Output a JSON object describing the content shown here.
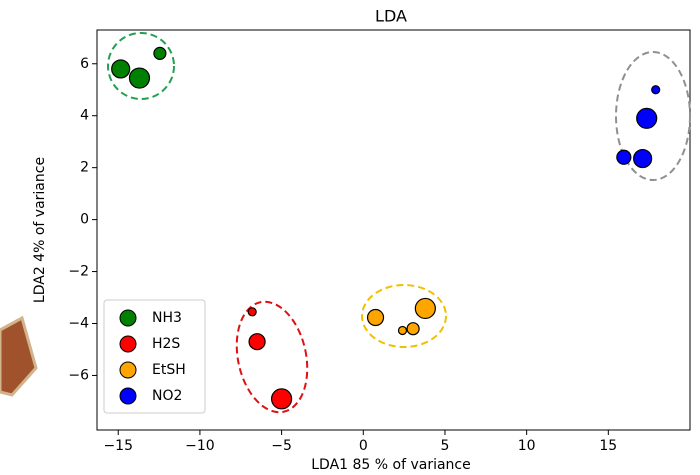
{
  "chart_data": {
    "type": "scatter",
    "title": "LDA",
    "x_label": "LDA1 85 % of variance",
    "y_label": "LDA2 4% of variance",
    "xlim": [
      -16.3,
      20
    ],
    "ylim": [
      -8.1,
      7.3
    ],
    "xticks": [
      {
        "value": -15,
        "label": "−15"
      },
      {
        "value": -10,
        "label": "−10"
      },
      {
        "value": -5,
        "label": "−5"
      },
      0,
      5,
      10,
      15
    ],
    "yticks": [
      {
        "value": -6,
        "label": "−6"
      },
      {
        "value": -4,
        "label": "−4"
      },
      {
        "value": -2,
        "label": "−2"
      },
      0,
      2,
      4,
      6
    ],
    "legend": "lower left",
    "series": [
      {
        "name": "NH3",
        "color": "#008000",
        "x": [
          -14.85,
          -13.7,
          -12.45
        ],
        "values": [
          5.8,
          5.45,
          6.4
        ],
        "sizes": [
          9,
          10,
          6
        ]
      },
      {
        "name": "H2S",
        "color": "#ff0000",
        "x": [
          -6.8,
          -6.5,
          -5.0
        ],
        "values": [
          -3.55,
          -4.7,
          -6.9
        ],
        "sizes": [
          4,
          8,
          10
        ]
      },
      {
        "name": "EtSH",
        "color": "#ffa500",
        "x": [
          0.75,
          2.4,
          3.05,
          3.8
        ],
        "values": [
          -3.77,
          -4.27,
          -4.2,
          -3.42
        ],
        "sizes": [
          8,
          4,
          6,
          10
        ]
      },
      {
        "name": "NO2",
        "color": "#0000ff",
        "x": [
          17.9,
          17.35,
          15.95,
          17.1
        ],
        "values": [
          5.0,
          3.9,
          2.4,
          2.35
        ],
        "sizes": [
          4,
          10,
          7,
          9
        ]
      }
    ]
  }
}
